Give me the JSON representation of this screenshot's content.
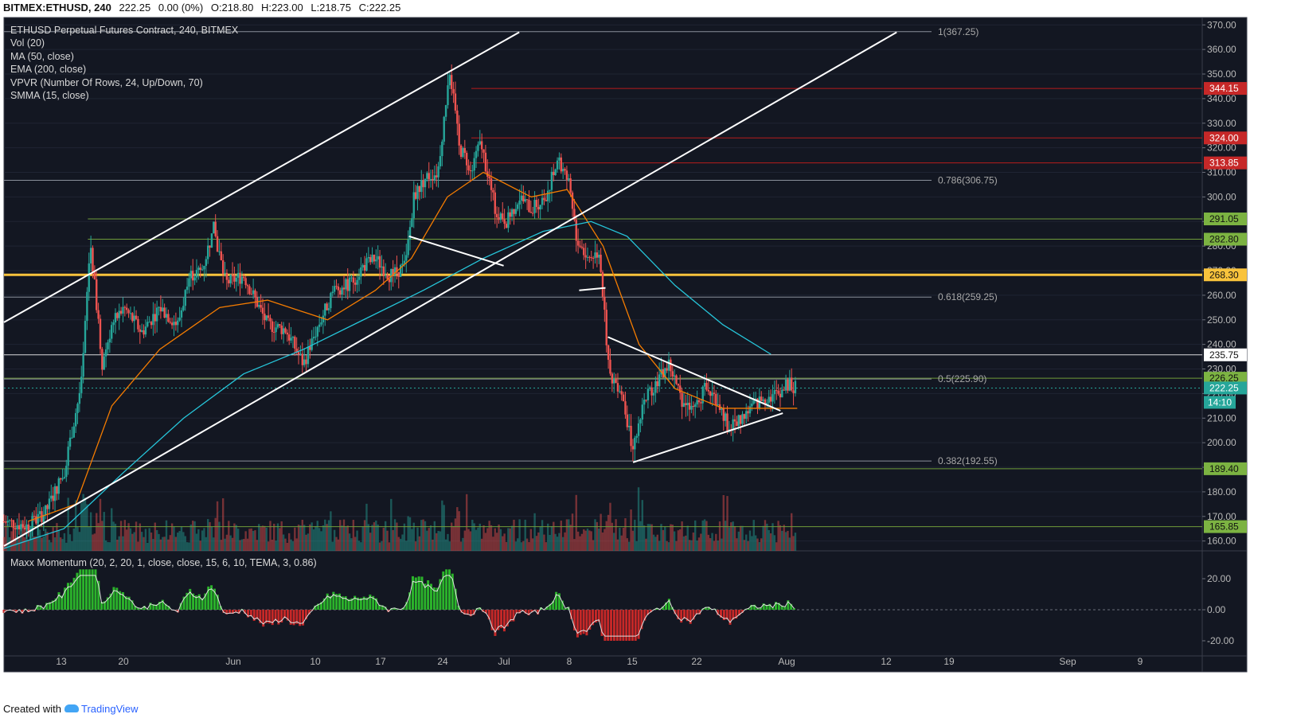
{
  "header": {
    "symbol": "BITMEX:ETHUSD, 240",
    "last": "222.25",
    "change": "0.00 (0%)",
    "open": "O:218.80",
    "high": "H:223.00",
    "low": "L:218.75",
    "close": "C:222.25"
  },
  "legend": {
    "title": "ETHUSD Perpetual Futures Contract, 240, BITMEX",
    "items": [
      "Vol (20)",
      "MA (50, close)",
      "EMA (200, close)",
      "VPVR (Number Of Rows, 24, Up/Down, 70)",
      "SMMA (15, close)"
    ]
  },
  "oscillator_label": "Maxx Momentum (20, 2, 20, 1, close, close, 15, 6, 10, TEMA, 3, 0.86)",
  "footer": {
    "created_with": "Created with",
    "brand": "TradingView"
  },
  "colors": {
    "background": "#131722",
    "up": "#26a69a",
    "down": "#ef5350",
    "ma": "#f57c00",
    "ema": "#26c6da",
    "key_level": "#f9c33c",
    "red_level": "#b71c1c",
    "green_level": "#6f9b3a"
  },
  "chart_data": {
    "type": "candlestick",
    "price_axis": {
      "ticks": [
        160,
        170,
        180,
        190,
        200,
        210,
        220,
        230,
        240,
        250,
        260,
        270,
        280,
        290,
        300,
        310,
        320,
        330,
        340,
        350,
        360,
        370
      ],
      "range": [
        156,
        373
      ]
    },
    "time_axis": {
      "labels": [
        "13",
        "20",
        "Jun",
        "10",
        "17",
        "24",
        "Jul",
        "8",
        "15",
        "22",
        "Aug",
        "12",
        "19",
        "Sep",
        "9"
      ]
    },
    "fib_levels": [
      {
        "label": "1(367.25)",
        "price": 367.25
      },
      {
        "label": "0.786(306.75)",
        "price": 306.75
      },
      {
        "label": "0.618(259.25)",
        "price": 259.25
      },
      {
        "label": "0.5(225.90)",
        "price": 225.9
      },
      {
        "label": "0.382(192.55)",
        "price": 192.55
      }
    ],
    "horizontal_levels": [
      {
        "price": 344.15,
        "label": "344.15",
        "kind": "red"
      },
      {
        "price": 324.0,
        "label": "324.00",
        "kind": "red"
      },
      {
        "price": 313.85,
        "label": "313.85",
        "kind": "red"
      },
      {
        "price": 291.05,
        "label": "291.05",
        "kind": "green"
      },
      {
        "price": 282.8,
        "label": "282.80",
        "kind": "green"
      },
      {
        "price": 268.3,
        "label": "268.30",
        "kind": "orange"
      },
      {
        "price": 235.75,
        "label": "235.75",
        "kind": "white"
      },
      {
        "price": 226.25,
        "label": "226.25",
        "kind": "green"
      },
      {
        "price": 189.4,
        "label": "189.40",
        "kind": "green"
      },
      {
        "price": 165.85,
        "label": "165.85",
        "kind": "green"
      }
    ],
    "current_price": {
      "price": 222.25,
      "label": "222.25",
      "countdown": "14:10"
    },
    "oscillator": {
      "ticks": [
        20,
        0,
        -20
      ],
      "tick_labels": [
        "20.00",
        "0.00",
        "-20.00"
      ]
    },
    "trend_lines": [
      {
        "from": [
          0.0,
          249.0
        ],
        "to": [
          0.43,
          367.0
        ]
      },
      {
        "from": [
          0.0,
          158.0
        ],
        "to": [
          0.745,
          367.0
        ]
      },
      {
        "from": [
          0.338,
          284.0
        ],
        "to": [
          0.417,
          272.0
        ]
      },
      {
        "from": [
          0.48,
          262.0
        ],
        "to": [
          0.502,
          263.0
        ]
      },
      {
        "from": [
          0.504,
          243.0
        ],
        "to": [
          0.648,
          213.0
        ]
      },
      {
        "from": [
          0.525,
          192.0
        ],
        "to": [
          0.65,
          212.0
        ]
      }
    ],
    "price_path": [
      [
        0.0,
        168
      ],
      [
        0.02,
        166
      ],
      [
        0.035,
        172
      ],
      [
        0.05,
        188
      ],
      [
        0.065,
        225
      ],
      [
        0.072,
        282
      ],
      [
        0.082,
        232
      ],
      [
        0.09,
        248
      ],
      [
        0.1,
        255
      ],
      [
        0.115,
        245
      ],
      [
        0.13,
        255
      ],
      [
        0.145,
        248
      ],
      [
        0.155,
        268
      ],
      [
        0.165,
        270
      ],
      [
        0.175,
        287
      ],
      [
        0.185,
        265
      ],
      [
        0.2,
        268
      ],
      [
        0.21,
        258
      ],
      [
        0.22,
        248
      ],
      [
        0.235,
        246
      ],
      [
        0.25,
        232
      ],
      [
        0.26,
        245
      ],
      [
        0.275,
        262
      ],
      [
        0.29,
        265
      ],
      [
        0.3,
        272
      ],
      [
        0.31,
        275
      ],
      [
        0.322,
        268
      ],
      [
        0.335,
        272
      ],
      [
        0.342,
        300
      ],
      [
        0.352,
        308
      ],
      [
        0.362,
        310
      ],
      [
        0.372,
        352
      ],
      [
        0.38,
        320
      ],
      [
        0.39,
        312
      ],
      [
        0.398,
        322
      ],
      [
        0.41,
        295
      ],
      [
        0.42,
        290
      ],
      [
        0.43,
        300
      ],
      [
        0.44,
        295
      ],
      [
        0.452,
        300
      ],
      [
        0.462,
        315
      ],
      [
        0.472,
        305
      ],
      [
        0.478,
        283
      ],
      [
        0.487,
        275
      ],
      [
        0.497,
        278
      ],
      [
        0.505,
        228
      ],
      [
        0.515,
        222
      ],
      [
        0.525,
        197
      ],
      [
        0.535,
        218
      ],
      [
        0.545,
        225
      ],
      [
        0.555,
        232
      ],
      [
        0.565,
        218
      ],
      [
        0.575,
        212
      ],
      [
        0.585,
        222
      ],
      [
        0.595,
        218
      ],
      [
        0.605,
        206
      ],
      [
        0.615,
        210
      ],
      [
        0.625,
        215
      ],
      [
        0.635,
        218
      ],
      [
        0.645,
        220
      ],
      [
        0.655,
        224
      ],
      [
        0.662,
        222
      ]
    ],
    "ma_50_path": [
      [
        0.02,
        168
      ],
      [
        0.06,
        175
      ],
      [
        0.09,
        215
      ],
      [
        0.13,
        238
      ],
      [
        0.18,
        255
      ],
      [
        0.22,
        258
      ],
      [
        0.27,
        250
      ],
      [
        0.31,
        262
      ],
      [
        0.34,
        275
      ],
      [
        0.37,
        300
      ],
      [
        0.4,
        310
      ],
      [
        0.44,
        300
      ],
      [
        0.47,
        303
      ],
      [
        0.5,
        280
      ],
      [
        0.53,
        240
      ],
      [
        0.56,
        222
      ],
      [
        0.6,
        214
      ],
      [
        0.63,
        214
      ],
      [
        0.662,
        214
      ]
    ],
    "ema_200_path": [
      [
        0.0,
        157
      ],
      [
        0.05,
        165
      ],
      [
        0.1,
        188
      ],
      [
        0.15,
        210
      ],
      [
        0.2,
        228
      ],
      [
        0.25,
        238
      ],
      [
        0.3,
        250
      ],
      [
        0.35,
        262
      ],
      [
        0.4,
        275
      ],
      [
        0.45,
        286
      ],
      [
        0.49,
        290
      ],
      [
        0.52,
        284
      ],
      [
        0.56,
        264
      ],
      [
        0.6,
        248
      ],
      [
        0.64,
        236
      ]
    ]
  }
}
